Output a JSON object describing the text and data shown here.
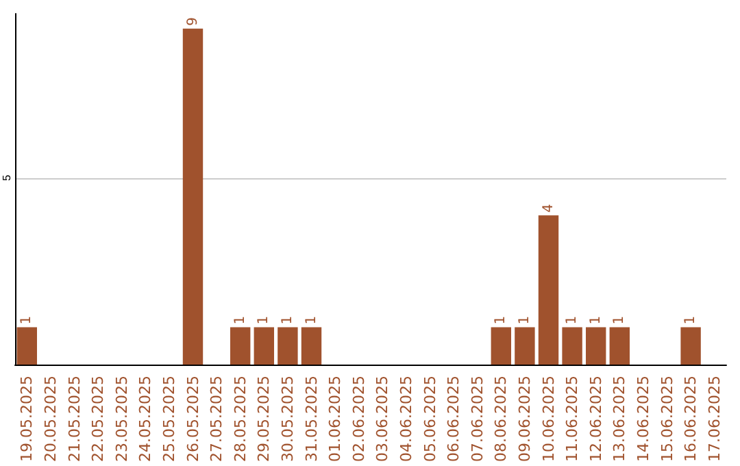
{
  "chart_data": {
    "type": "bar",
    "categories": [
      "19.05.2025",
      "20.05.2025",
      "21.05.2025",
      "22.05.2025",
      "23.05.2025",
      "24.05.2025",
      "25.05.2025",
      "26.05.2025",
      "27.05.2025",
      "28.05.2025",
      "29.05.2025",
      "30.05.2025",
      "31.05.2025",
      "01.06.2025",
      "02.06.2025",
      "03.06.2025",
      "04.06.2025",
      "05.06.2025",
      "06.06.2025",
      "07.06.2025",
      "08.06.2025",
      "09.06.2025",
      "10.06.2025",
      "11.06.2025",
      "12.06.2025",
      "13.06.2025",
      "14.06.2025",
      "15.06.2025",
      "16.06.2025",
      "17.06.2025"
    ],
    "values": [
      1,
      0,
      0,
      0,
      0,
      0,
      0,
      9,
      0,
      1,
      1,
      1,
      1,
      0,
      0,
      0,
      0,
      0,
      0,
      0,
      1,
      1,
      4,
      1,
      1,
      1,
      0,
      0,
      1,
      0
    ],
    "color": "#a0522d",
    "value_labels": [
      "1",
      null,
      null,
      null,
      null,
      null,
      null,
      "9",
      null,
      "1",
      "1",
      "1",
      "1",
      null,
      null,
      null,
      null,
      null,
      null,
      null,
      "1",
      "1",
      "4",
      "1",
      "1",
      "1",
      null,
      null,
      "1",
      null
    ],
    "ylim": [
      0,
      9.4
    ],
    "yticks": [
      5
    ],
    "grid": "y"
  }
}
